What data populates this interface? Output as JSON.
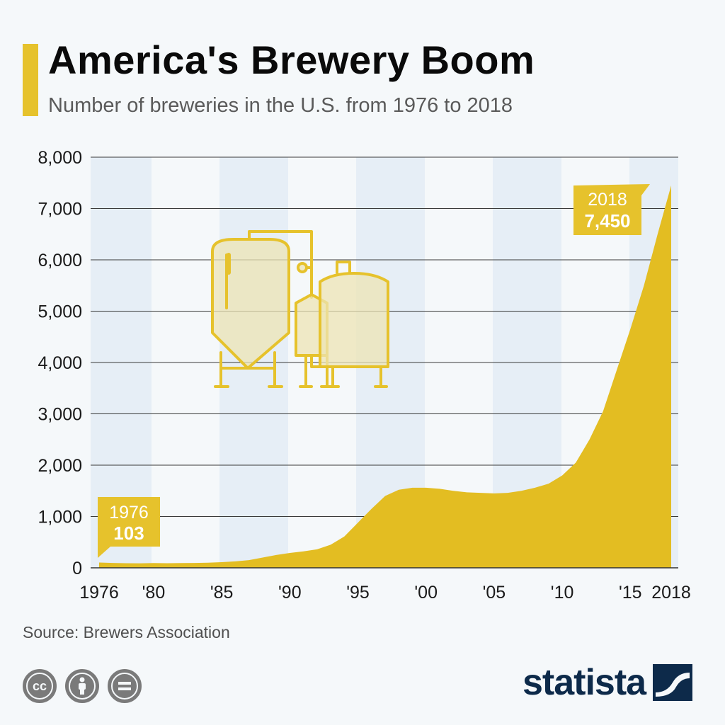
{
  "header": {
    "title": "America's Brewery Boom",
    "subtitle": "Number of breweries in the U.S. from 1976 to 2018"
  },
  "colors": {
    "accent": "#e6c22c",
    "area": "#e3bd22",
    "band": "#e6eef6",
    "background": "#f5f8fa",
    "brand": "#0d2a4a"
  },
  "chart_data": {
    "type": "area",
    "x": [
      1976,
      1977,
      1978,
      1979,
      1980,
      1981,
      1982,
      1983,
      1984,
      1985,
      1986,
      1987,
      1988,
      1989,
      1990,
      1991,
      1992,
      1993,
      1994,
      1995,
      1996,
      1997,
      1998,
      1999,
      2000,
      2001,
      2002,
      2003,
      2004,
      2005,
      2006,
      2007,
      2008,
      2009,
      2010,
      2011,
      2012,
      2013,
      2014,
      2015,
      2016,
      2017,
      2018
    ],
    "values": [
      103,
      95,
      90,
      88,
      92,
      90,
      92,
      95,
      100,
      110,
      125,
      150,
      200,
      250,
      290,
      320,
      360,
      450,
      610,
      880,
      1150,
      1400,
      1520,
      1560,
      1560,
      1540,
      1500,
      1470,
      1460,
      1450,
      1460,
      1500,
      1560,
      1640,
      1800,
      2050,
      2500,
      3050,
      3850,
      4650,
      5500,
      6500,
      7450
    ],
    "xtick_labels": [
      "1976",
      "'80",
      "'85",
      "'90",
      "'95",
      "'00",
      "'05",
      "'10",
      "'15",
      "2018"
    ],
    "xtick_years": [
      1976,
      1980,
      1985,
      1990,
      1995,
      2000,
      2005,
      2010,
      2015,
      2018
    ],
    "ytick_labels": [
      "0",
      "1,000",
      "2,000",
      "3,000",
      "4,000",
      "5,000",
      "6,000",
      "7,000",
      "8,000"
    ],
    "ylim": [
      0,
      8000
    ],
    "xlim": [
      1976,
      2018
    ],
    "annotations": [
      {
        "year_label": "1976",
        "value_label": "103",
        "x": 1976,
        "y": 103
      },
      {
        "year_label": "2018",
        "value_label": "7,450",
        "x": 2018,
        "y": 7450
      }
    ],
    "grid": true
  },
  "footer": {
    "source": "Source: Brewers Association",
    "brand": "statista",
    "license_icons": [
      "cc-icon",
      "attribution-icon",
      "no-derivatives-icon"
    ]
  }
}
